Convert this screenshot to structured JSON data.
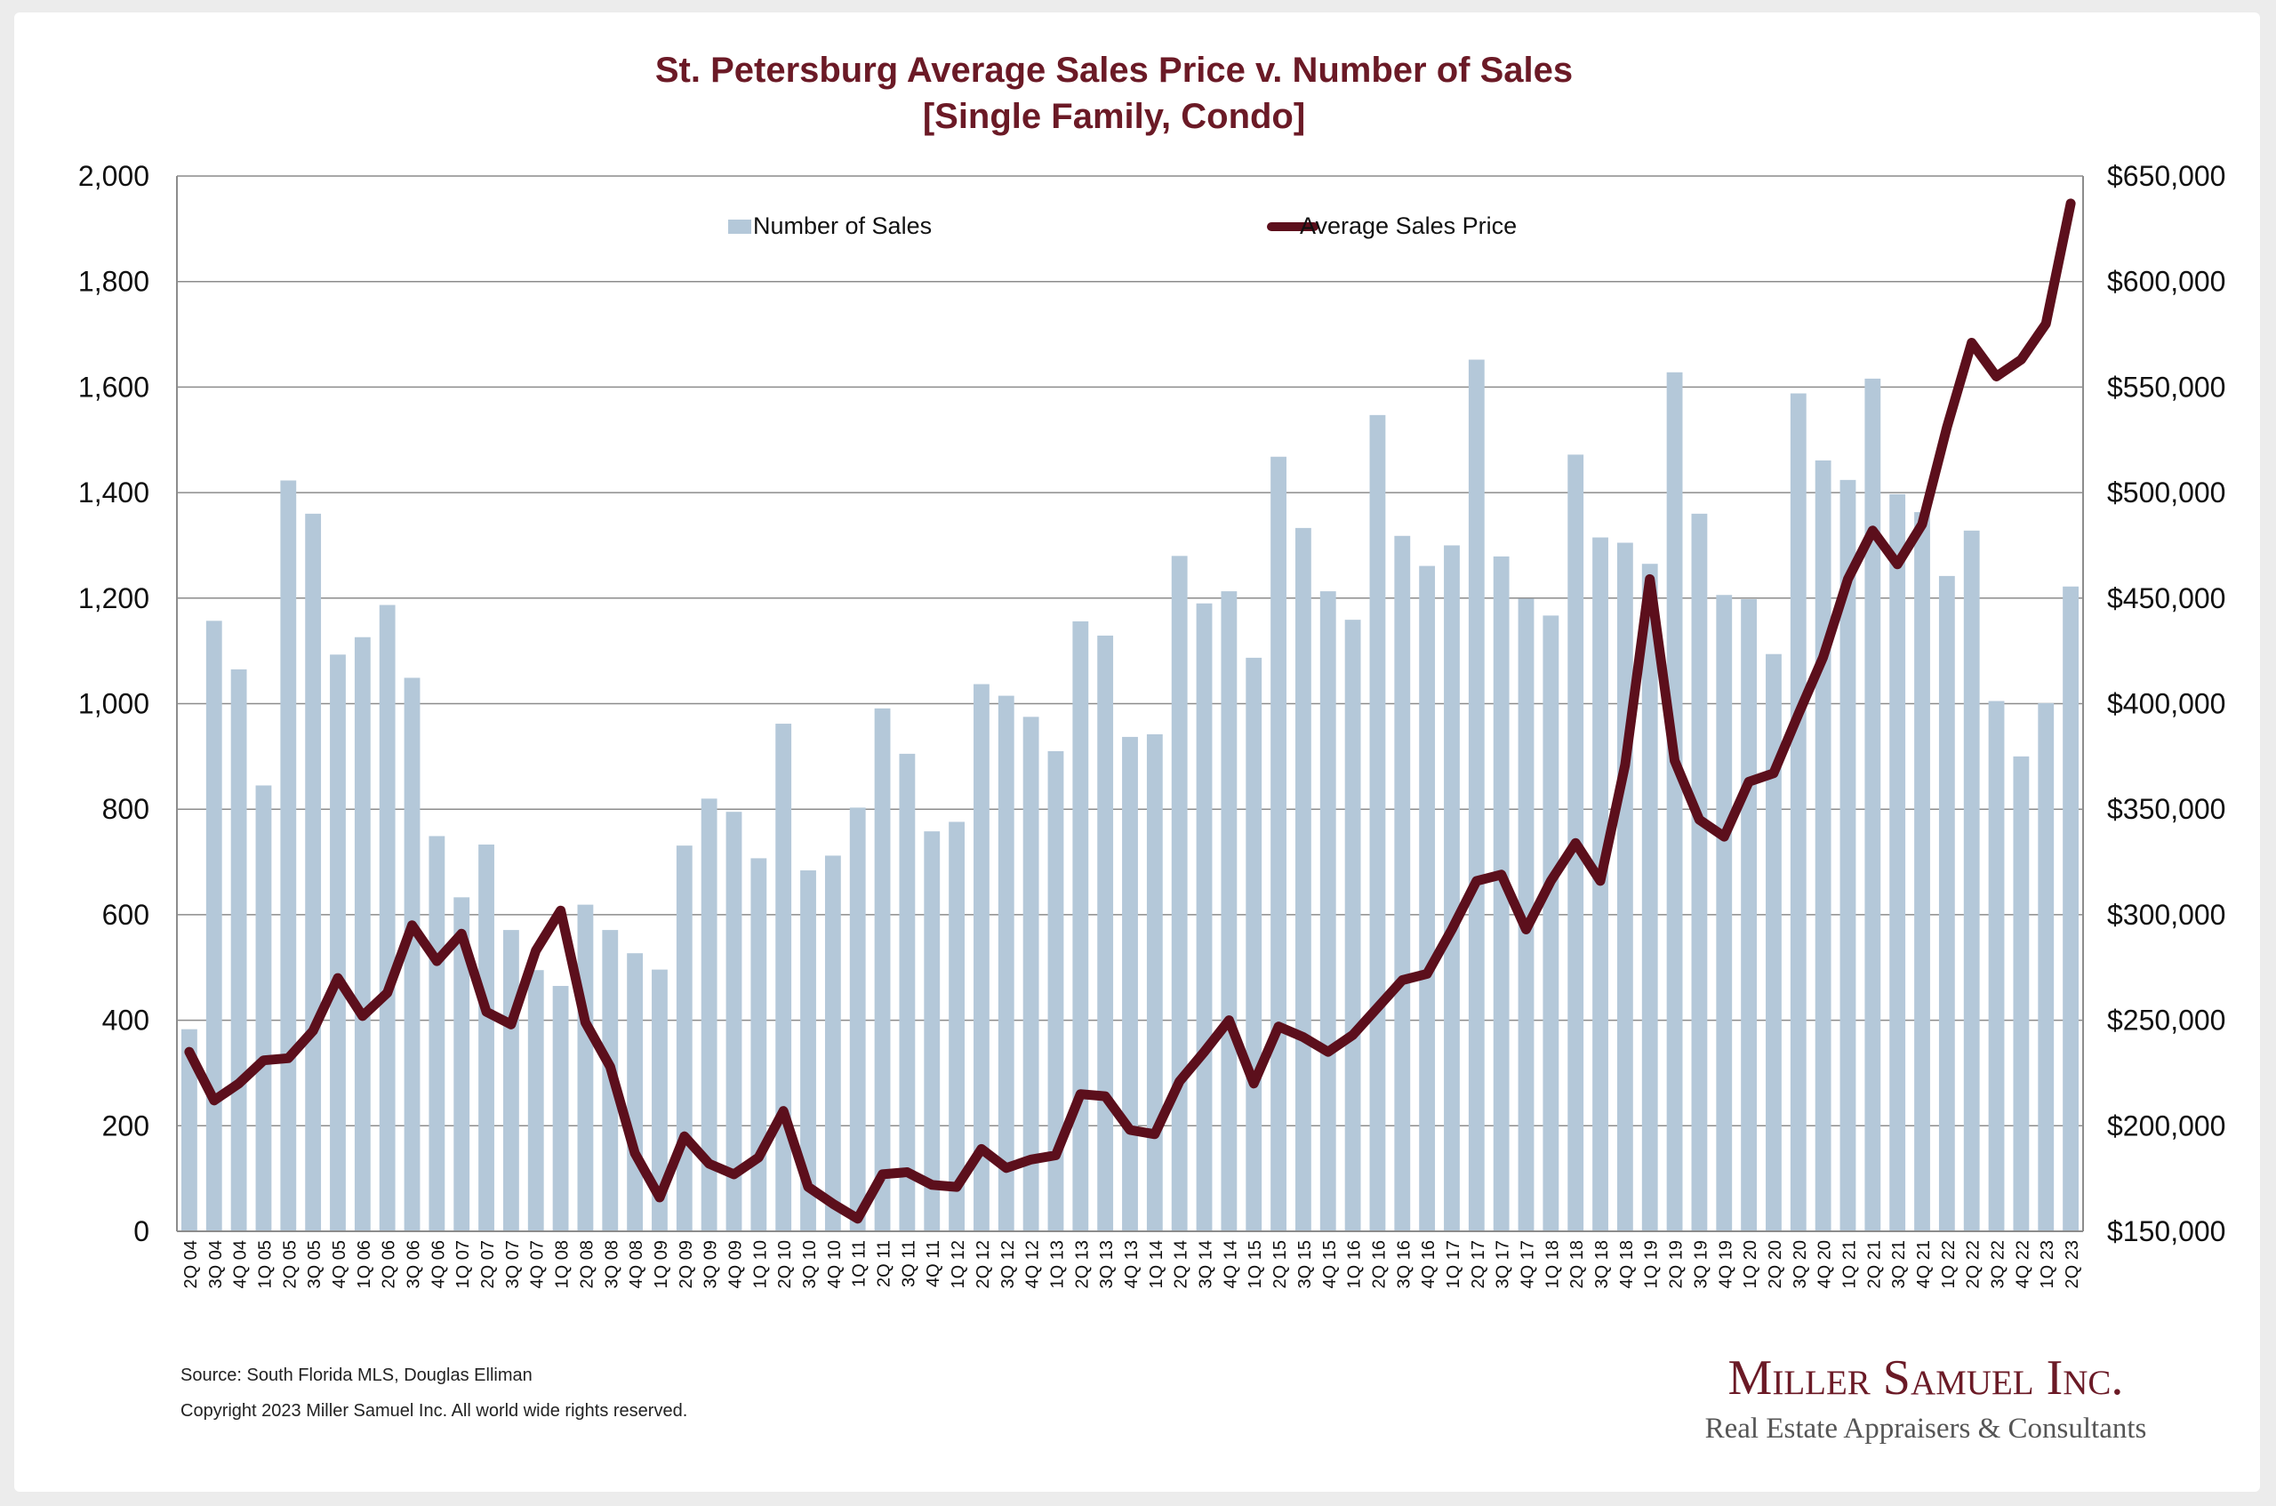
{
  "colors": {
    "bar": "#b4c8d9",
    "line": "#5c0f1c",
    "title": "#6b1a26",
    "grid": "#8c8c8c",
    "text": "#111111",
    "logo": "#6b1a26",
    "tagline": "#555555"
  },
  "footer": {
    "source": "Source: South Florida MLS, Douglas Elliman",
    "copyright": "Copyright 2023 Miller Samuel Inc.  All world wide rights reserved."
  },
  "logo": {
    "name": "Miller Samuel Inc.",
    "tagline": "Real Estate Appraisers & Consultants"
  },
  "chart_data": {
    "type": "bar",
    "title": "St. Petersburg Average Sales Price v. Number of Sales",
    "subtitle": "[Single Family, Condo]",
    "grid": true,
    "legend_position": "top",
    "y_left": {
      "range": [
        0,
        2000
      ],
      "ticks": [
        "0",
        "200",
        "400",
        "600",
        "800",
        "1,000",
        "1,200",
        "1,400",
        "1,600",
        "1,800",
        "2,000"
      ]
    },
    "y_right": {
      "range": [
        150000,
        650000
      ],
      "ticks": [
        "$150,000",
        "$200,000",
        "$250,000",
        "$300,000",
        "$350,000",
        "$400,000",
        "$450,000",
        "$500,000",
        "$550,000",
        "$600,000",
        "$650,000"
      ]
    },
    "categories": [
      "2Q 04",
      "3Q 04",
      "4Q 04",
      "1Q 05",
      "2Q 05",
      "3Q 05",
      "4Q 05",
      "1Q 06",
      "2Q 06",
      "3Q 06",
      "4Q 06",
      "1Q 07",
      "2Q 07",
      "3Q 07",
      "4Q 07",
      "1Q 08",
      "2Q 08",
      "3Q 08",
      "4Q 08",
      "1Q 09",
      "2Q 09",
      "3Q 09",
      "4Q 09",
      "1Q 10",
      "2Q 10",
      "3Q 10",
      "4Q 10",
      "1Q 11",
      "2Q 11",
      "3Q 11",
      "4Q 11",
      "1Q 12",
      "2Q 12",
      "3Q 12",
      "4Q 12",
      "1Q 13",
      "2Q 13",
      "3Q 13",
      "4Q 13",
      "1Q 14",
      "2Q 14",
      "3Q 14",
      "4Q 14",
      "1Q 15",
      "2Q 15",
      "3Q 15",
      "4Q 15",
      "1Q 16",
      "2Q 16",
      "3Q 16",
      "4Q 16",
      "1Q 17",
      "2Q 17",
      "3Q 17",
      "4Q 17",
      "1Q 18",
      "2Q 18",
      "3Q 18",
      "4Q 18",
      "1Q 19",
      "2Q 19",
      "3Q 19",
      "4Q 19",
      "1Q 20",
      "2Q 20",
      "3Q 20",
      "4Q 20",
      "1Q 21",
      "2Q 21",
      "3Q 21",
      "4Q 21",
      "1Q 22",
      "2Q 22",
      "3Q 22",
      "4Q 22",
      "1Q 23",
      "2Q 23"
    ],
    "series": [
      {
        "name": "Number of Sales",
        "type": "bar",
        "axis": "left",
        "values": [
          383,
          1157,
          1065,
          845,
          1423,
          1360,
          1093,
          1126,
          1187,
          1049,
          749,
          633,
          733,
          571,
          495,
          465,
          619,
          571,
          527,
          496,
          731,
          820,
          795,
          707,
          962,
          684,
          712,
          803,
          991,
          905,
          758,
          776,
          1037,
          1015,
          975,
          910,
          1156,
          1129,
          937,
          942,
          1280,
          1190,
          1213,
          1087,
          1468,
          1333,
          1213,
          1159,
          1547,
          1318,
          1261,
          1300,
          1652,
          1279,
          1199,
          1167,
          1472,
          1315,
          1305,
          1265,
          1628,
          1360,
          1206,
          1198,
          1094,
          1588,
          1461,
          1424,
          1616,
          1397,
          1363,
          1242,
          1328,
          1005,
          900,
          1001,
          1222
        ]
      },
      {
        "name": "Average Sales Price",
        "type": "line",
        "axis": "right",
        "values": [
          235000,
          212000,
          220000,
          231000,
          232000,
          245000,
          270000,
          252000,
          263000,
          295000,
          278000,
          291000,
          254000,
          248000,
          283000,
          302000,
          249000,
          228000,
          187000,
          166000,
          195000,
          182000,
          177000,
          185000,
          207000,
          171000,
          163000,
          156000,
          177000,
          178000,
          172000,
          171000,
          189000,
          180000,
          184000,
          186000,
          215000,
          214000,
          198000,
          196000,
          221000,
          235000,
          250000,
          220000,
          247000,
          242000,
          235000,
          243000,
          256000,
          269000,
          272000,
          293000,
          316000,
          319000,
          293000,
          316000,
          334000,
          316000,
          371000,
          459000,
          373000,
          345000,
          337000,
          363000,
          367000,
          395000,
          422000,
          459000,
          482000,
          466000,
          485000,
          531000,
          571000,
          555000,
          563000,
          580000,
          637000
        ]
      }
    ]
  }
}
